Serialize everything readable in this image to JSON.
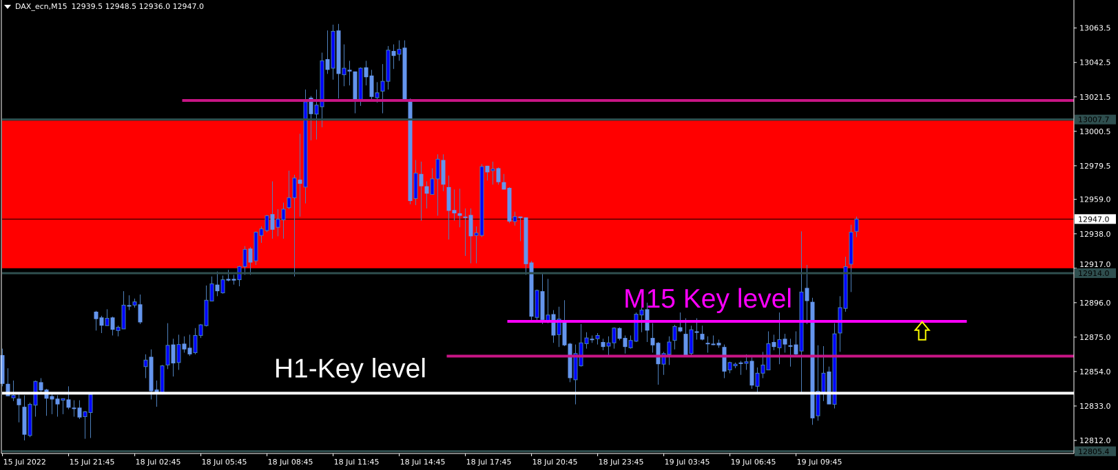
{
  "header": {
    "symbol_timeframe": "DAX_ecn,M15",
    "ohlc_text": "12939.5 12948.5 12936.0 12947.0",
    "menu_icon": "triangle-down-icon"
  },
  "colors": {
    "background": "#000000",
    "bull_body": "#0000ff",
    "bull_outline": "#4682b4",
    "bear_body": "#6495ed",
    "wick": "#4f81bd",
    "zone": "#ff0000",
    "zone_line": "#2f4f4f",
    "h1_line": "#ffffff",
    "m15_line": "#ff00ff",
    "level_line": "#c71585",
    "arrow": "#ffff00",
    "axis_text": "#ffffff"
  },
  "chart_data": {
    "type": "candlestick",
    "title": "DAX_ecn,M15",
    "ylim": [
      12805.4,
      13070
    ],
    "grid": false,
    "y_ticks": [
      "13063.5",
      "13042.5",
      "13021.5",
      "13000.5",
      "12979.5",
      "12959.0",
      "12938.0",
      "12917.0",
      "12896.0",
      "12875.0",
      "12854.0",
      "12833.0",
      "12812.0"
    ],
    "x_ticks": [
      {
        "bar": 0,
        "label": "15 Jul 2022"
      },
      {
        "bar": 12,
        "label": "15 Jul 21:45"
      },
      {
        "bar": 24,
        "label": "18 Jul 02:45"
      },
      {
        "bar": 36,
        "label": "18 Jul 05:45"
      },
      {
        "bar": 48,
        "label": "18 Jul 08:45"
      },
      {
        "bar": 60,
        "label": "18 Jul 11:45"
      },
      {
        "bar": 72,
        "label": "18 Jul 14:45"
      },
      {
        "bar": 84,
        "label": "18 Jul 17:45"
      },
      {
        "bar": 96,
        "label": "18 Jul 20:45"
      },
      {
        "bar": 108,
        "label": "18 Jul 23:45"
      },
      {
        "bar": 120,
        "label": "19 Jul 03:45"
      },
      {
        "bar": 132,
        "label": "19 Jul 06:45"
      },
      {
        "bar": 144,
        "label": "19 Jul 09:45"
      }
    ],
    "price_labels": [
      {
        "price": 13007.7,
        "label": "13007.7",
        "style": "line"
      },
      {
        "price": 12947.0,
        "label": "12947.0",
        "style": "current"
      },
      {
        "price": 12914.0,
        "label": "12914.0",
        "style": "line"
      },
      {
        "price": 12805.4,
        "label": "12805.4",
        "style": "line"
      }
    ],
    "zone": {
      "from": 12917.0,
      "to": 13007.0
    },
    "levels": [
      {
        "name": "zone-top-line",
        "price": 13007.7,
        "from_bar": 0,
        "to_bar": "end",
        "color": "#2f4f4f"
      },
      {
        "name": "zone-bottom-line",
        "price": 12914.0,
        "from_bar": 0,
        "to_bar": "end",
        "color": "#2f4f4f"
      },
      {
        "name": "bottom-line",
        "price": 12805.4,
        "from_bar": 0,
        "to_bar": "end",
        "color": "#2f4f4f"
      },
      {
        "name": "upper-level-line",
        "price": 13019.3,
        "from_bar": 33,
        "to_bar": "end",
        "color": "#c71585"
      },
      {
        "name": "lower-level-line",
        "price": 12863.4,
        "from_bar": 81,
        "to_bar": "end",
        "color": "#c71585"
      },
      {
        "name": "m15-key-level-line",
        "price": 12884.6,
        "from_bar": 92,
        "to_bar": 175,
        "color": "#ff00ff"
      },
      {
        "name": "h1-key-level-line",
        "price": 12840.8,
        "from_bar": 0,
        "to_bar": "end",
        "color": "#ffffff"
      }
    ],
    "current_price": 12947.0,
    "annotations": [
      {
        "name": "h1-key-level-label",
        "text": "H1-Key level",
        "bar": 49.3,
        "price": 12850.5,
        "color": "#ffffff"
      },
      {
        "name": "m15-key-level-label",
        "text": "M15 Key level",
        "bar": 112.7,
        "price": 12893.0,
        "color": "#ff00ff"
      }
    ],
    "arrow": {
      "direction": "up",
      "bar": 166.9,
      "price": 12880.5,
      "color": "#ffff00"
    },
    "ohlc": [
      [
        12864,
        12868,
        12845,
        12846.5
      ],
      [
        12846.5,
        12856,
        12839,
        12839
      ],
      [
        12838,
        12848.5,
        12836,
        12839.5
      ],
      [
        12837.5,
        12840,
        12823,
        12833.5
      ],
      [
        12832.5,
        12839.5,
        12812,
        12815.5
      ],
      [
        12815,
        12835,
        12814,
        12834
      ],
      [
        12833.5,
        12848.5,
        12826.5,
        12848
      ],
      [
        12847.5,
        12850,
        12841,
        12842.5
      ],
      [
        12843,
        12843.5,
        12827,
        12837.5
      ],
      [
        12839,
        12841,
        12828,
        12837
      ],
      [
        12837.5,
        12839.5,
        12826.5,
        12834
      ],
      [
        12836.5,
        12837.5,
        12828,
        12837.5
      ],
      [
        12837,
        12845,
        12831,
        12832
      ],
      [
        12832,
        12836.5,
        12826.5,
        12831.5
      ],
      [
        12832,
        12836.5,
        12825,
        12826
      ],
      [
        12826.5,
        12830,
        12813,
        12829.5
      ],
      [
        12829,
        12841,
        12813.5,
        12840
      ],
      [
        12890.5,
        12891,
        12879,
        12886
      ],
      [
        12887,
        12888,
        12877.5,
        12882
      ],
      [
        12882,
        12892,
        12882,
        12886.5
      ],
      [
        12887,
        12887.5,
        12876,
        12879.5
      ],
      [
        12879,
        12882,
        12875.5,
        12881
      ],
      [
        12880,
        12903,
        12880,
        12894.5
      ],
      [
        12894.5,
        12900.5,
        12891.5,
        12894
      ],
      [
        12894.5,
        12898.5,
        12893,
        12896.5
      ],
      [
        12895,
        12901,
        12883,
        12884
      ],
      [
        12857,
        12864.5,
        12850,
        12861
      ],
      [
        12863,
        12867.5,
        12837,
        12842
      ],
      [
        12843,
        12848.5,
        12832.5,
        12841.5
      ],
      [
        12840.5,
        12858,
        12840,
        12857.5
      ],
      [
        12858,
        12883.5,
        12855.5,
        12870
      ],
      [
        12870.5,
        12874,
        12851,
        12859
      ],
      [
        12859.5,
        12876.5,
        12855,
        12870.5
      ],
      [
        12871,
        12875.5,
        12865.5,
        12867.5
      ],
      [
        12868.5,
        12876.5,
        12863.5,
        12864.5
      ],
      [
        12865.5,
        12880.5,
        12864.5,
        12876
      ],
      [
        12876,
        12883,
        12874.5,
        12882.5
      ],
      [
        12882,
        12906.5,
        12881.5,
        12897.5
      ],
      [
        12897,
        12912,
        12897,
        12907.5
      ],
      [
        12907,
        12915,
        12900,
        12903
      ],
      [
        12902,
        12912.5,
        12901.5,
        12910
      ],
      [
        12910.5,
        12916,
        12909,
        12909.5
      ],
      [
        12910.5,
        12913,
        12907,
        12909.5
      ],
      [
        12910,
        12918.5,
        12906,
        12918
      ],
      [
        12918,
        12930.5,
        12913,
        12928.5
      ],
      [
        12929,
        12930,
        12913,
        12920.5
      ],
      [
        12921.5,
        12939.5,
        12919,
        12939
      ],
      [
        12937,
        12942.5,
        12932.5,
        12941
      ],
      [
        12940,
        12949.5,
        12939,
        12949
      ],
      [
        12950,
        12970,
        12935,
        12940.5
      ],
      [
        12942,
        12953,
        12936.5,
        12947
      ],
      [
        12946.5,
        12957,
        12935,
        12953
      ],
      [
        12954,
        12976.5,
        12953,
        12960
      ],
      [
        12960,
        12974,
        12912,
        12972
      ],
      [
        12971,
        12999,
        12948.5,
        12968.5
      ],
      [
        12966.5,
        13026,
        12956.5,
        13018.5
      ],
      [
        13021,
        13022,
        12995,
        13011
      ],
      [
        13011,
        13026,
        12995.5,
        13016.5
      ],
      [
        13015.5,
        13048.5,
        13003,
        13043.5
      ],
      [
        13044.5,
        13062,
        13035.5,
        13038
      ],
      [
        13039,
        13065.5,
        13032,
        13061.5
      ],
      [
        13062,
        13066,
        13020.5,
        13035.5
      ],
      [
        13035,
        13053.5,
        13028,
        13039
      ],
      [
        13038,
        13043.5,
        13028.5,
        13037
      ],
      [
        13037,
        13037,
        13011.5,
        13020
      ],
      [
        13020,
        13039.5,
        13016,
        13039
      ],
      [
        13039.5,
        13043.5,
        13028.5,
        13033.5
      ],
      [
        13034.5,
        13038,
        13019,
        13021.5
      ],
      [
        13021,
        13030.5,
        13018,
        13024
      ],
      [
        13025,
        13041.5,
        13011.5,
        13031
      ],
      [
        13031,
        13052.5,
        13026,
        13050
      ],
      [
        13049.5,
        13053.5,
        13038.5,
        13046.5
      ],
      [
        13047.5,
        13056,
        13043.5,
        13050.5
      ],
      [
        13051.5,
        13056,
        13019,
        13019.5
      ],
      [
        13018.5,
        13020.5,
        12956,
        12958
      ],
      [
        12959.5,
        12983,
        12955.5,
        12975
      ],
      [
        12974.5,
        12982,
        12946,
        12967
      ],
      [
        12967,
        12970,
        12953.5,
        12962.5
      ],
      [
        12962,
        12978,
        12962,
        12971.5
      ],
      [
        12971.5,
        12986.5,
        12949,
        12983.5
      ],
      [
        12983,
        12986.5,
        12964,
        12968
      ],
      [
        12966.5,
        12973.5,
        12934.5,
        12952
      ],
      [
        12952.5,
        12965,
        12946,
        12950.5
      ],
      [
        12950.5,
        12965.5,
        12942,
        12949
      ],
      [
        12948.5,
        12953.5,
        12924.5,
        12948.5
      ],
      [
        12949.5,
        12953.5,
        12920,
        12936.5
      ],
      [
        12937,
        12942.5,
        12920,
        12938.5
      ],
      [
        12937,
        12980.5,
        12936,
        12979
      ],
      [
        12979.5,
        12979.5,
        12970.5,
        12975.5
      ],
      [
        12976.5,
        12982,
        12968,
        12977.5
      ],
      [
        12978,
        12978.5,
        12968,
        12969.5
      ],
      [
        12969.5,
        12974.5,
        12965,
        12965
      ],
      [
        12966,
        12966.5,
        12944.5,
        12945.5
      ],
      [
        12945.5,
        12951.5,
        12943,
        12948.5
      ],
      [
        12948.5,
        12948.5,
        12933.5,
        12948
      ],
      [
        12948,
        12948,
        12913,
        12919.5
      ],
      [
        12920.5,
        12921.5,
        12885.5,
        12887.5
      ],
      [
        12887,
        12904,
        12885.5,
        12903.5
      ],
      [
        12903,
        12913.5,
        12883,
        12885.5
      ],
      [
        12884.5,
        12910.5,
        12883.5,
        12888.5
      ],
      [
        12889,
        12891.5,
        12871.5,
        12876
      ],
      [
        12876.5,
        12893.5,
        12869,
        12886
      ],
      [
        12884.5,
        12897.5,
        12869.5,
        12870
      ],
      [
        12871,
        12871.5,
        12847.5,
        12850
      ],
      [
        12849,
        12870.5,
        12834,
        12865
      ],
      [
        12857.5,
        12883,
        12857,
        12871.5
      ],
      [
        12871,
        12878,
        12868,
        12874.5
      ],
      [
        12874,
        12876,
        12871.5,
        12874
      ],
      [
        12874,
        12877.5,
        12870.5,
        12876
      ],
      [
        12872,
        12874,
        12867,
        12869
      ],
      [
        12869.5,
        12875.5,
        12864,
        12871.5
      ],
      [
        12871.5,
        12881,
        12868,
        12880.5
      ],
      [
        12880.5,
        12881,
        12873,
        12874
      ],
      [
        12874.5,
        12876,
        12865,
        12869
      ],
      [
        12868.5,
        12876,
        12868,
        12873
      ],
      [
        12872.5,
        12890,
        12872,
        12889
      ],
      [
        12888.5,
        12893,
        12878,
        12891.5
      ],
      [
        12892,
        12896,
        12872,
        12879
      ],
      [
        12874.5,
        12883.5,
        12865.5,
        12870
      ],
      [
        12871.5,
        12872,
        12846,
        12858.5
      ],
      [
        12858.5,
        12866,
        12852,
        12865
      ],
      [
        12864.5,
        12875.5,
        12858,
        12872
      ],
      [
        12873,
        12882.5,
        12867.5,
        12881.5
      ],
      [
        12881,
        12890,
        12878,
        12878.5
      ],
      [
        12877,
        12886.5,
        12863,
        12863.5
      ],
      [
        12865,
        12882,
        12864,
        12879.5
      ],
      [
        12878.5,
        12886.5,
        12873.5,
        12878.5
      ],
      [
        12877,
        12882,
        12873,
        12873.5
      ],
      [
        12871.5,
        12875.5,
        12865.5,
        12871
      ],
      [
        12871,
        12876,
        12870,
        12870.5
      ],
      [
        12871.5,
        12873.5,
        12868.5,
        12870
      ],
      [
        12869,
        12870.5,
        12850,
        12854
      ],
      [
        12855,
        12860,
        12853,
        12859.5
      ],
      [
        12857.5,
        12859.5,
        12856,
        12858.5
      ],
      [
        12859.5,
        12860.5,
        12852,
        12859.5
      ],
      [
        12859,
        12864.5,
        12855,
        12860
      ],
      [
        12860.5,
        12862.5,
        12843.5,
        12845.5
      ],
      [
        12845,
        12856.5,
        12841.5,
        12853
      ],
      [
        12853,
        12866,
        12850,
        12858
      ],
      [
        12855,
        12878.5,
        12855,
        12871
      ],
      [
        12872,
        12876.5,
        12867,
        12869
      ],
      [
        12868.5,
        12890,
        12858.5,
        12873.5
      ],
      [
        12874,
        12877,
        12865.5,
        12870.5
      ],
      [
        12870,
        12874,
        12857,
        12870
      ],
      [
        12870.5,
        12878.5,
        12864,
        12864.5
      ],
      [
        12866.5,
        12939.5,
        12841.5,
        12902.5
      ],
      [
        12905,
        12919,
        12883,
        12897
      ],
      [
        12896.5,
        12899,
        12821.5,
        12825.5
      ],
      [
        12827,
        12870,
        12824,
        12842
      ],
      [
        12841.5,
        12869.5,
        12836,
        12853
      ],
      [
        12854,
        12857,
        12834,
        12834
      ],
      [
        12834,
        12883.5,
        12831.5,
        12877
      ],
      [
        12877.5,
        12900,
        12866,
        12893
      ],
      [
        12892.5,
        12924,
        12890.5,
        12918
      ],
      [
        12919.5,
        12943.5,
        12902.5,
        12939
      ],
      [
        12939.5,
        12948.5,
        12936,
        12947
      ]
    ]
  }
}
